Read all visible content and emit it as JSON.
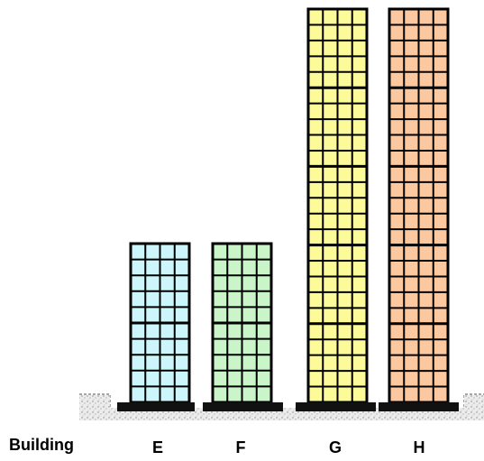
{
  "row_label": "Building",
  "buildings": [
    {
      "label": "E",
      "fill": "#ccf6fb",
      "sections": 2
    },
    {
      "label": "F",
      "fill": "#c9f5c9",
      "sections": 2
    },
    {
      "label": "G",
      "fill": "#fdfb99",
      "sections": 5
    },
    {
      "label": "H",
      "fill": "#fcc8a0",
      "sections": 5
    }
  ],
  "colors": {
    "grid": "#000000",
    "base": "#111111",
    "ground": "#e9e9e9"
  }
}
